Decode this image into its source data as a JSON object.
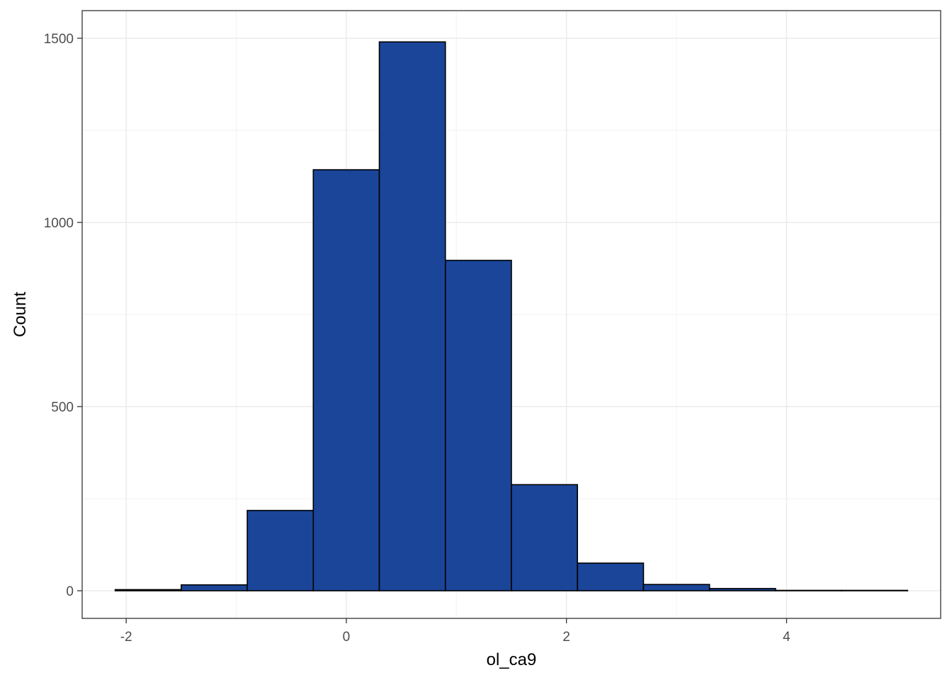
{
  "chart_data": {
    "type": "bar",
    "subtype": "histogram",
    "xlabel": "ol_ca9",
    "ylabel": "Count",
    "xlim": [
      -2.4,
      5.4
    ],
    "ylim": [
      -75,
      1575
    ],
    "x_ticks": [
      -2,
      0,
      2,
      4
    ],
    "x_tick_labels": [
      "-2",
      "0",
      "2",
      "4"
    ],
    "y_ticks": [
      0,
      500,
      1000,
      1500
    ],
    "y_tick_labels": [
      "0",
      "500",
      "1000",
      "1500"
    ],
    "grid": true,
    "bin_edges": [
      -2.1,
      -1.5,
      -0.9,
      -0.3,
      0.3,
      0.9,
      1.5,
      2.1,
      2.7,
      3.3,
      3.9,
      4.5,
      5.1
    ],
    "counts": [
      3,
      16,
      218,
      1143,
      1490,
      897,
      288,
      75,
      17,
      6,
      1,
      1
    ],
    "colors": {
      "fill": "#1a4599",
      "stroke": "#000000"
    }
  }
}
